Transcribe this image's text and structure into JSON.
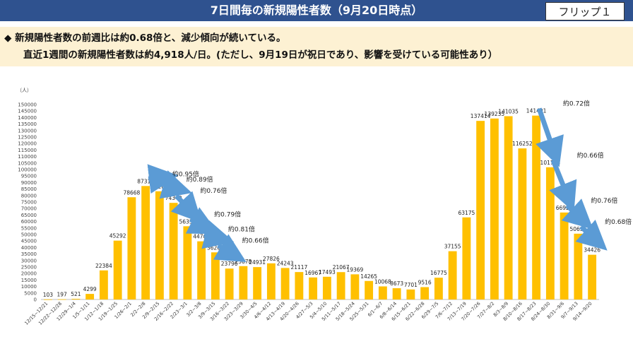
{
  "header": {
    "title": "7日間毎の新規陽性者数（9月20日時点）",
    "flip_label": "フリップ１"
  },
  "summary": {
    "line1": "◆ 新規陽性者数の前週比は約0.68倍と、減少傾向が続いている。",
    "line2": "直近1週間の新規陽性者数は約4,918人/日。(ただし、9月19日が祝日であり、影響を受けている可能性あり）"
  },
  "colors": {
    "bar": "#ffc000",
    "arrow": "#5b9bd5",
    "title_bg": "#2f528f",
    "summary_bg": "#fdf1d3"
  },
  "chart_data": {
    "type": "bar",
    "unit_label": "（人）",
    "ylim": [
      0,
      150000
    ],
    "yticks": [
      0,
      5000,
      10000,
      15000,
      20000,
      25000,
      30000,
      35000,
      40000,
      45000,
      50000,
      55000,
      60000,
      65000,
      70000,
      75000,
      80000,
      85000,
      90000,
      95000,
      100000,
      105000,
      110000,
      115000,
      120000,
      125000,
      130000,
      135000,
      140000,
      145000,
      150000
    ],
    "grid": false,
    "categories": [
      "12/15~12/21",
      "12/22~12/28",
      "12/29~1/4",
      "1/5~1/11",
      "1/12~1/18",
      "1/19~1/25",
      "1/26~2/1",
      "2/2~2/8",
      "2/9~2/15",
      "2/16~2/22",
      "2/23~3/1",
      "3/2~3/8",
      "3/9~3/15",
      "3/16~3/22",
      "3/23~3/29",
      "3/30~4/5",
      "4/6~4/12",
      "4/13~4/19",
      "4/20~4/26",
      "4/27~5/3",
      "5/4~5/10",
      "5/11~5/17",
      "5/18~5/24",
      "5/25~5/31",
      "6/1~6/7",
      "6/8~6/14",
      "6/15~6/21",
      "6/22~6/28",
      "6/29~7/5",
      "7/6~7/12",
      "7/13~7/19",
      "7/20~7/26",
      "7/27~8/2",
      "8/3~8/9",
      "8/10~8/16",
      "8/17~8/23",
      "8/24~8/30",
      "8/31~9/6",
      "9/7~9/13",
      "9/14~9/20"
    ],
    "values": [
      103,
      197,
      521,
      4299,
      22384,
      45292,
      78668,
      87316,
      83260,
      74340,
      56336,
      44760,
      36268,
      23796,
      25678,
      24931,
      27826,
      24243,
      21117,
      16967,
      17493,
      21067,
      19369,
      14265,
      10068,
      8673,
      7701,
      9516,
      16775,
      37155,
      63175,
      137414,
      139235,
      141035,
      116252,
      141491,
      101733,
      66921,
      50631,
      34426
    ],
    "annotations": [
      {
        "text": "約0.95倍",
        "from": 7,
        "to": 8
      },
      {
        "text": "約0.89倍",
        "from": 8,
        "to": 9
      },
      {
        "text": "約0.76倍",
        "from": 9,
        "to": 10
      },
      {
        "text": "約0.79倍",
        "from": 10,
        "to": 11
      },
      {
        "text": "約0.81倍",
        "from": 11,
        "to": 12
      },
      {
        "text": "約0.66倍",
        "from": 12,
        "to": 13
      },
      {
        "text": "約0.72倍",
        "from": 35,
        "to": 36
      },
      {
        "text": "約0.66倍",
        "from": 36,
        "to": 37
      },
      {
        "text": "約0.76倍",
        "from": 37,
        "to": 38
      },
      {
        "text": "約0.68倍",
        "from": 38,
        "to": 39
      }
    ]
  }
}
